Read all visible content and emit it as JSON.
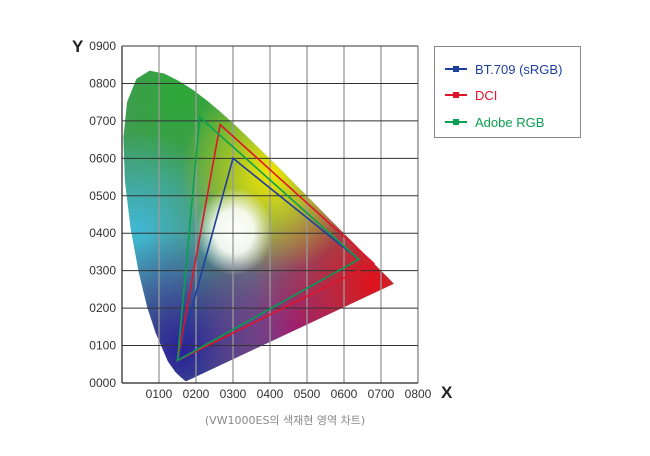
{
  "chart_data": {
    "type": "scatter",
    "title": "",
    "caption": "(VW1000ES의 색재현 영역 차트)",
    "xlabel": "X",
    "ylabel": "Y",
    "xlim": [
      0,
      0.8
    ],
    "ylim": [
      0,
      0.9
    ],
    "grid": true,
    "legend_position": "right",
    "x_ticks": [
      "0100",
      "0200",
      "0300",
      "0400",
      "0500",
      "0600",
      "0700",
      "0800"
    ],
    "y_ticks": [
      "0000",
      "0100",
      "0200",
      "0300",
      "0400",
      "0500",
      "0600",
      "0700",
      "0800",
      "0900"
    ],
    "background": "CIE 1931 xy chromaticity diagram (spectral locus)",
    "series": [
      {
        "name": "BT.709 (sRGB)",
        "color": "#1f3f9f",
        "points": [
          [
            0.64,
            0.33
          ],
          [
            0.3,
            0.6
          ],
          [
            0.15,
            0.06
          ]
        ]
      },
      {
        "name": "DCI",
        "color": "#e0142a",
        "points": [
          [
            0.68,
            0.32
          ],
          [
            0.265,
            0.69
          ],
          [
            0.15,
            0.06
          ]
        ]
      },
      {
        "name": "Adobe RGB",
        "color": "#0aa050",
        "points": [
          [
            0.64,
            0.33
          ],
          [
            0.21,
            0.71
          ],
          [
            0.15,
            0.06
          ]
        ]
      }
    ]
  },
  "legend": {
    "items": [
      {
        "label": "BT.709 (sRGB)",
        "color": "#1f3f9f"
      },
      {
        "label": "DCI",
        "color": "#e0142a"
      },
      {
        "label": "Adobe RGB",
        "color": "#0aa050"
      }
    ]
  }
}
